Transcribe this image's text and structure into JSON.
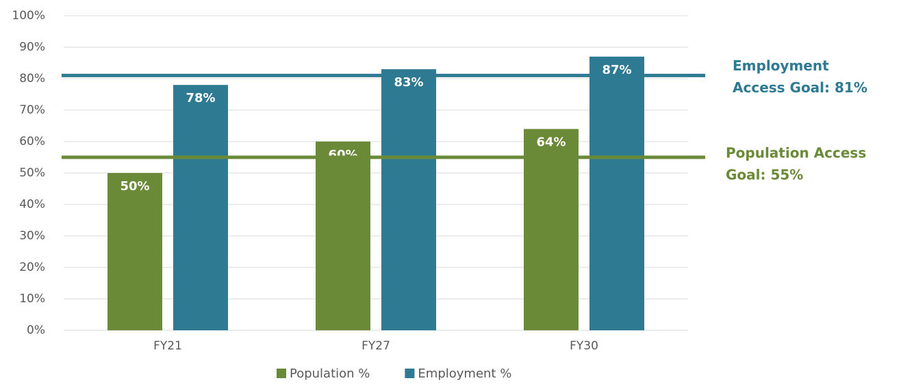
{
  "chart_data": {
    "type": "bar",
    "categories": [
      "FY21",
      "FY27",
      "FY30"
    ],
    "series": [
      {
        "name": "Population %",
        "color": "#6b8a38",
        "values": [
          50,
          60,
          64
        ],
        "value_labels": [
          "50%",
          "60%",
          "64%"
        ]
      },
      {
        "name": "Employment %",
        "color": "#2e7a92",
        "values": [
          78,
          83,
          87
        ],
        "value_labels": [
          "78%",
          "83%",
          "87%"
        ]
      }
    ],
    "goals": [
      {
        "lines": [
          "Employment",
          "Access Goal: 81%"
        ],
        "value": 81,
        "color": "#2e7a92"
      },
      {
        "lines": [
          "Population Access",
          "Goal: 55%"
        ],
        "value": 55,
        "color": "#6b8a38"
      }
    ],
    "ylim": [
      0,
      100
    ],
    "yticks": [
      {
        "value": 0,
        "label": "0%"
      },
      {
        "value": 10,
        "label": "10%"
      },
      {
        "value": 20,
        "label": "20%"
      },
      {
        "value": 30,
        "label": "30%"
      },
      {
        "value": 40,
        "label": "40%"
      },
      {
        "value": 50,
        "label": "50%"
      },
      {
        "value": 60,
        "label": "60%"
      },
      {
        "value": 70,
        "label": "70%"
      },
      {
        "value": 80,
        "label": "80%"
      },
      {
        "value": 90,
        "label": "90%"
      },
      {
        "value": 100,
        "label": "100%"
      }
    ],
    "grid": true
  }
}
